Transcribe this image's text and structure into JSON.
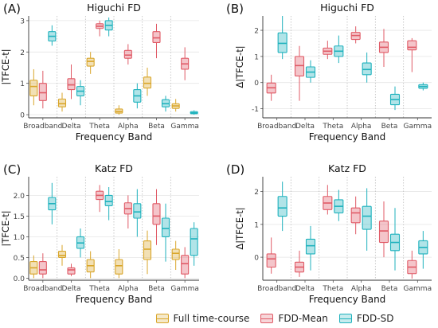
{
  "colors": {
    "full": "#d9a62a",
    "mean": "#e05a66",
    "sd": "#1fb2bd",
    "grid": "#e6e6e6",
    "divider": "#bdbdbd",
    "axis_text": "#444444"
  },
  "legend": {
    "items": [
      {
        "label": "Full time-course",
        "color_key": "full"
      },
      {
        "label": "FDD-Mean",
        "color_key": "mean"
      },
      {
        "label": "FDD-SD",
        "color_key": "sd"
      }
    ]
  },
  "chart_data": [
    {
      "panel_label": "(A)",
      "type": "boxplot",
      "title": "Higuchi FD",
      "xlabel": "Frequency Band",
      "ylabel": "|TFCE-t|",
      "ylim": [
        -0.1,
        3.15
      ],
      "yticks": [
        0,
        1,
        2,
        3
      ],
      "categories": [
        "Broadband",
        "Delta",
        "Theta",
        "Alpha",
        "Beta",
        "Gamma"
      ],
      "series": [
        {
          "key": "full",
          "stats": [
            {
              "min": 0.3,
              "q1": 0.6,
              "median": 0.9,
              "q3": 1.1,
              "max": 1.45
            },
            {
              "min": 0.1,
              "q1": 0.25,
              "median": 0.35,
              "q3": 0.5,
              "max": 0.7
            },
            {
              "min": 1.3,
              "q1": 1.55,
              "median": 1.7,
              "q3": 1.8,
              "max": 2.0
            },
            {
              "min": 0.0,
              "q1": 0.05,
              "median": 0.1,
              "q3": 0.18,
              "max": 0.3
            },
            {
              "min": 0.6,
              "q1": 0.85,
              "median": 1.0,
              "q3": 1.2,
              "max": 1.5
            },
            {
              "min": 0.1,
              "q1": 0.2,
              "median": 0.28,
              "q3": 0.35,
              "max": 0.5
            }
          ]
        },
        {
          "key": "mean",
          "stats": [
            {
              "min": 0.2,
              "q1": 0.45,
              "median": 0.7,
              "q3": 1.0,
              "max": 1.4
            },
            {
              "min": 0.5,
              "q1": 0.8,
              "median": 0.95,
              "q3": 1.15,
              "max": 1.6
            },
            {
              "min": 2.5,
              "q1": 2.75,
              "median": 2.82,
              "q3": 2.9,
              "max": 3.0
            },
            {
              "min": 1.6,
              "q1": 1.8,
              "median": 1.9,
              "q3": 2.05,
              "max": 2.25
            },
            {
              "min": 1.8,
              "q1": 2.3,
              "median": 2.45,
              "q3": 2.65,
              "max": 2.9
            },
            {
              "min": 1.1,
              "q1": 1.45,
              "median": 1.62,
              "q3": 1.8,
              "max": 2.15
            }
          ]
        },
        {
          "key": "sd",
          "stats": [
            {
              "min": 2.2,
              "q1": 2.35,
              "median": 2.5,
              "q3": 2.65,
              "max": 2.85
            },
            {
              "min": 0.3,
              "q1": 0.6,
              "median": 0.75,
              "q3": 0.9,
              "max": 1.1
            },
            {
              "min": 2.5,
              "q1": 2.7,
              "median": 2.85,
              "q3": 3.0,
              "max": 3.1
            },
            {
              "min": 0.2,
              "q1": 0.4,
              "median": 0.6,
              "q3": 0.8,
              "max": 1.0
            },
            {
              "min": 0.1,
              "q1": 0.25,
              "median": 0.35,
              "q3": 0.48,
              "max": 0.6
            },
            {
              "min": 0.0,
              "q1": 0.03,
              "median": 0.06,
              "q3": 0.1,
              "max": 0.14
            }
          ]
        }
      ]
    },
    {
      "panel_label": "(B)",
      "type": "boxplot",
      "title": "Higuchi FD",
      "xlabel": "Frequency Band",
      "ylabel": "Δ|TFCE-t|",
      "ylim": [
        -1.35,
        2.55
      ],
      "yticks": [
        -1,
        0,
        1,
        2
      ],
      "categories": [
        "Broadband",
        "Delta",
        "Theta",
        "Alpha",
        "Beta",
        "Gamma"
      ],
      "series": [
        {
          "key": "mean",
          "stats": [
            {
              "min": -0.7,
              "q1": -0.4,
              "median": -0.2,
              "q3": -0.02,
              "max": 0.3
            },
            {
              "min": -0.7,
              "q1": 0.25,
              "median": 0.65,
              "q3": 1.0,
              "max": 1.4
            },
            {
              "min": 0.9,
              "q1": 1.08,
              "median": 1.2,
              "q3": 1.32,
              "max": 1.6
            },
            {
              "min": 1.5,
              "q1": 1.65,
              "median": 1.8,
              "q3": 1.92,
              "max": 2.15
            },
            {
              "min": 0.6,
              "q1": 1.15,
              "median": 1.35,
              "q3": 1.55,
              "max": 2.05
            },
            {
              "min": 0.4,
              "q1": 1.25,
              "median": 1.35,
              "q3": 1.6,
              "max": 1.7
            }
          ]
        },
        {
          "key": "sd",
          "stats": [
            {
              "min": 0.9,
              "q1": 1.15,
              "median": 1.5,
              "q3": 1.9,
              "max": 2.55
            },
            {
              "min": 0.0,
              "q1": 0.2,
              "median": 0.4,
              "q3": 0.6,
              "max": 0.85
            },
            {
              "min": 0.75,
              "q1": 1.0,
              "median": 1.2,
              "q3": 1.4,
              "max": 1.8
            },
            {
              "min": 0.0,
              "q1": 0.3,
              "median": 0.5,
              "q3": 0.75,
              "max": 1.15
            },
            {
              "min": -1.05,
              "q1": -0.85,
              "median": -0.65,
              "q3": -0.45,
              "max": -0.15
            },
            {
              "min": -0.3,
              "q1": -0.22,
              "median": -0.15,
              "q3": -0.08,
              "max": 0.0
            }
          ]
        }
      ]
    },
    {
      "panel_label": "(C)",
      "type": "boxplot",
      "title": "Katz FD",
      "xlabel": "Frequency Band",
      "ylabel": "|TFCE-t|",
      "ylim": [
        -0.05,
        2.45
      ],
      "yticks": [
        0.0,
        0.5,
        1.0,
        1.5,
        2.0
      ],
      "categories": [
        "Broadband",
        "Delta",
        "Theta",
        "Alpha",
        "Beta",
        "Gamma"
      ],
      "series": [
        {
          "key": "full",
          "stats": [
            {
              "min": 0.0,
              "q1": 0.1,
              "median": 0.25,
              "q3": 0.4,
              "max": 0.55
            },
            {
              "min": 0.3,
              "q1": 0.5,
              "median": 0.55,
              "q3": 0.65,
              "max": 0.8
            },
            {
              "min": 0.0,
              "q1": 0.15,
              "median": 0.3,
              "q3": 0.45,
              "max": 0.65
            },
            {
              "min": 0.0,
              "q1": 0.1,
              "median": 0.3,
              "q3": 0.45,
              "max": 0.7
            },
            {
              "min": 0.1,
              "q1": 0.45,
              "median": 0.7,
              "q3": 0.9,
              "max": 1.15
            },
            {
              "min": 0.2,
              "q1": 0.45,
              "median": 0.6,
              "q3": 0.7,
              "max": 0.9
            }
          ]
        },
        {
          "key": "mean",
          "stats": [
            {
              "min": 0.0,
              "q1": 0.1,
              "median": 0.2,
              "q3": 0.4,
              "max": 0.6
            },
            {
              "min": 0.05,
              "q1": 0.1,
              "median": 0.2,
              "q3": 0.25,
              "max": 0.35
            },
            {
              "min": 1.6,
              "q1": 1.9,
              "median": 2.0,
              "q3": 2.1,
              "max": 2.25
            },
            {
              "min": 1.2,
              "q1": 1.55,
              "median": 1.68,
              "q3": 1.82,
              "max": 2.0
            },
            {
              "min": 0.8,
              "q1": 1.3,
              "median": 1.5,
              "q3": 1.8,
              "max": 2.15
            },
            {
              "min": 0.0,
              "q1": 0.1,
              "median": 0.35,
              "q3": 0.55,
              "max": 0.75
            }
          ]
        },
        {
          "key": "sd",
          "stats": [
            {
              "min": 1.3,
              "q1": 1.65,
              "median": 1.8,
              "q3": 1.95,
              "max": 2.3
            },
            {
              "min": 0.5,
              "q1": 0.72,
              "median": 0.85,
              "q3": 1.0,
              "max": 1.2
            },
            {
              "min": 1.4,
              "q1": 1.75,
              "median": 1.85,
              "q3": 2.0,
              "max": 2.2
            },
            {
              "min": 1.0,
              "q1": 1.45,
              "median": 1.6,
              "q3": 1.8,
              "max": 2.15
            },
            {
              "min": 0.4,
              "q1": 1.0,
              "median": 1.2,
              "q3": 1.45,
              "max": 1.8
            },
            {
              "min": 0.3,
              "q1": 0.55,
              "median": 0.95,
              "q3": 1.2,
              "max": 1.35
            }
          ]
        }
      ]
    },
    {
      "panel_label": "(D)",
      "type": "boxplot",
      "title": "Katz FD",
      "xlabel": "Frequency Band",
      "ylabel": "Δ|TFCE-t|",
      "ylim": [
        -0.7,
        2.45
      ],
      "yticks": [
        0,
        1,
        2
      ],
      "categories": [
        "Broadband",
        "Delta",
        "Theta",
        "Alpha",
        "Beta",
        "Gamma"
      ],
      "series": [
        {
          "key": "mean",
          "stats": [
            {
              "min": -0.5,
              "q1": -0.3,
              "median": -0.05,
              "q3": 0.1,
              "max": 0.6
            },
            {
              "min": -0.6,
              "q1": -0.45,
              "median": -0.3,
              "q3": -0.15,
              "max": 0.2
            },
            {
              "min": 1.3,
              "q1": 1.45,
              "median": 1.65,
              "q3": 1.85,
              "max": 2.2
            },
            {
              "min": 0.7,
              "q1": 1.05,
              "median": 1.35,
              "q3": 1.5,
              "max": 1.85
            },
            {
              "min": 0.0,
              "q1": 0.45,
              "median": 0.8,
              "q3": 1.1,
              "max": 1.7
            },
            {
              "min": -0.65,
              "q1": -0.5,
              "median": -0.3,
              "q3": -0.1,
              "max": 0.2
            }
          ]
        },
        {
          "key": "sd",
          "stats": [
            {
              "min": 0.8,
              "q1": 1.25,
              "median": 1.5,
              "q3": 1.85,
              "max": 2.3
            },
            {
              "min": -0.4,
              "q1": 0.1,
              "median": 0.35,
              "q3": 0.55,
              "max": 0.95
            },
            {
              "min": 1.1,
              "q1": 1.35,
              "median": 1.55,
              "q3": 1.75,
              "max": 2.05
            },
            {
              "min": 0.2,
              "q1": 0.85,
              "median": 1.25,
              "q3": 1.55,
              "max": 2.1
            },
            {
              "min": -0.4,
              "q1": 0.2,
              "median": 0.45,
              "q3": 0.7,
              "max": 1.5
            },
            {
              "min": -0.35,
              "q1": 0.1,
              "median": 0.3,
              "q3": 0.5,
              "max": 0.8
            }
          ]
        }
      ]
    }
  ]
}
